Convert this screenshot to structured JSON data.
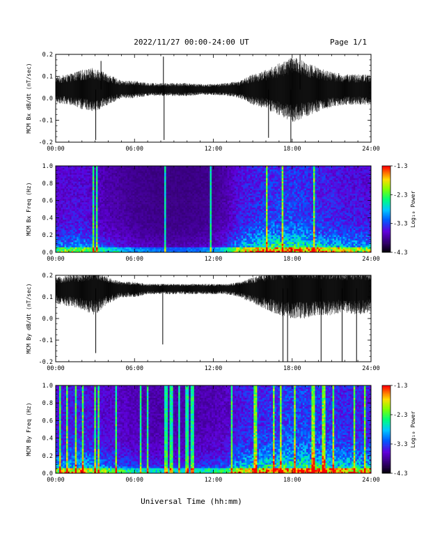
{
  "header": {
    "title": "2022/11/27  00:00-24:00 UT",
    "page": "Page 1/1"
  },
  "footer": {
    "xlabel": "Universal Time (hh:mm)"
  },
  "colors": {
    "trace": "#000000",
    "background": "#ffffff"
  },
  "chart_data": [
    {
      "type": "line",
      "title": "",
      "xlabel": "",
      "ylabel": "MCM Bx dB/dt (nT/sec)",
      "xlim": [
        0,
        24
      ],
      "ylim": [
        -0.2,
        0.2
      ],
      "x_ticks": [
        "00:00",
        "06:00",
        "12:00",
        "18:00",
        "24:00"
      ],
      "y_ticks": [
        "-0.2",
        "-0.1",
        "0.0",
        "0.1",
        "0.2"
      ],
      "x_tick_values": [
        0,
        6,
        12,
        18,
        24
      ],
      "y_tick_values": [
        -0.2,
        -0.1,
        0.0,
        0.1,
        0.2
      ],
      "baseline": 0.04,
      "envelope": {
        "hours": [
          0,
          1,
          2,
          3,
          4,
          5,
          6,
          7,
          8,
          9,
          10,
          11,
          12,
          13,
          14,
          15,
          16,
          17,
          18,
          19,
          20,
          21,
          22,
          23,
          24
        ],
        "amplitude": [
          0.06,
          0.07,
          0.09,
          0.1,
          0.07,
          0.04,
          0.04,
          0.03,
          0.03,
          0.03,
          0.03,
          0.025,
          0.025,
          0.03,
          0.04,
          0.07,
          0.09,
          0.12,
          0.15,
          0.13,
          0.1,
          0.08,
          0.07,
          0.07,
          0.07
        ]
      },
      "spikes": [
        {
          "x": 3.05,
          "y": -0.19
        },
        {
          "x": 3.45,
          "y": 0.17
        },
        {
          "x": 8.2,
          "y": 0.19
        },
        {
          "x": 8.25,
          "y": -0.19
        },
        {
          "x": 16.2,
          "y": -0.18
        },
        {
          "x": 17.9,
          "y": -0.2
        },
        {
          "x": 18.6,
          "y": 0.2
        }
      ]
    },
    {
      "type": "heatmap",
      "title": "",
      "xlabel": "",
      "ylabel": "MCM Bx Freq (Hz)",
      "xlim": [
        0,
        24
      ],
      "ylim": [
        0,
        1.0
      ],
      "x_ticks": [
        "00:00",
        "06:00",
        "12:00",
        "18:00",
        "24:00"
      ],
      "y_ticks": [
        "0.0",
        "0.2",
        "0.4",
        "0.6",
        "0.8",
        "1.0"
      ],
      "x_tick_values": [
        0,
        6,
        12,
        18,
        24
      ],
      "y_tick_values": [
        0,
        0.2,
        0.4,
        0.6,
        0.8,
        1.0
      ],
      "colorbar": {
        "label": "Log₁₀ Power",
        "range": [
          -4.3,
          -1.3
        ],
        "ticks": [
          "-1.3",
          "-2.3",
          "-3.3",
          "-4.3"
        ],
        "tick_values": [
          -1.3,
          -2.3,
          -3.3,
          -4.3
        ]
      },
      "activity": {
        "hours": [
          0,
          2,
          4,
          6,
          8,
          10,
          12,
          13,
          14,
          16,
          18,
          20,
          22,
          24
        ],
        "level": [
          0.45,
          0.5,
          0.3,
          0.2,
          0.15,
          0.15,
          0.2,
          0.3,
          0.55,
          0.7,
          0.75,
          0.65,
          0.55,
          0.5
        ]
      },
      "bright_columns": [
        2.9,
        3.1,
        8.3,
        11.8,
        16.1,
        17.3,
        19.7
      ]
    },
    {
      "type": "line",
      "title": "",
      "xlabel": "",
      "ylabel": "MCM By dB/dt (nT/sec)",
      "xlim": [
        0,
        24
      ],
      "ylim": [
        -0.2,
        0.2
      ],
      "x_ticks": [
        "00:00",
        "06:00",
        "12:00",
        "18:00",
        "24:00"
      ],
      "y_ticks": [
        "-0.2",
        "-0.1",
        "0.0",
        "0.1",
        "0.2"
      ],
      "x_tick_values": [
        0,
        6,
        12,
        18,
        24
      ],
      "y_tick_values": [
        -0.2,
        -0.1,
        0.0,
        0.1,
        0.2
      ],
      "baseline": 0.14,
      "envelope": {
        "hours": [
          0,
          1,
          2,
          3,
          4,
          5,
          6,
          7,
          8,
          9,
          10,
          11,
          12,
          13,
          14,
          15,
          16,
          17,
          18,
          19,
          20,
          21,
          22,
          23,
          24
        ],
        "amplitude": [
          0.05,
          0.06,
          0.07,
          0.09,
          0.05,
          0.03,
          0.03,
          0.02,
          0.02,
          0.02,
          0.02,
          0.02,
          0.02,
          0.02,
          0.03,
          0.05,
          0.07,
          0.09,
          0.1,
          0.1,
          0.09,
          0.09,
          0.08,
          0.09,
          0.08
        ]
      },
      "spikes": [
        {
          "x": 3.05,
          "y": -0.16
        },
        {
          "x": 8.15,
          "y": -0.12
        },
        {
          "x": 17.3,
          "y": -0.2
        },
        {
          "x": 17.65,
          "y": -0.2
        },
        {
          "x": 20.2,
          "y": -0.2
        },
        {
          "x": 21.8,
          "y": -0.2
        },
        {
          "x": 22.9,
          "y": -0.2
        }
      ]
    },
    {
      "type": "heatmap",
      "title": "",
      "xlabel": "",
      "ylabel": "MCM By Freq (Hz)",
      "xlim": [
        0,
        24
      ],
      "ylim": [
        0,
        1.0
      ],
      "x_ticks": [
        "00:00",
        "06:00",
        "12:00",
        "18:00",
        "24:00"
      ],
      "y_ticks": [
        "0.0",
        "0.2",
        "0.4",
        "0.6",
        "0.8",
        "1.0"
      ],
      "x_tick_values": [
        0,
        6,
        12,
        18,
        24
      ],
      "y_tick_values": [
        0,
        0.2,
        0.4,
        0.6,
        0.8,
        1.0
      ],
      "colorbar": {
        "label": "Log₁₀ Power",
        "range": [
          -4.3,
          -1.3
        ],
        "ticks": [
          "-1.3",
          "-2.3",
          "-3.3",
          "-4.3"
        ],
        "tick_values": [
          -1.3,
          -2.3,
          -3.3,
          -4.3
        ]
      },
      "activity": {
        "hours": [
          0,
          2,
          4,
          6,
          8,
          10,
          12,
          13,
          14,
          16,
          18,
          20,
          22,
          24
        ],
        "level": [
          0.55,
          0.6,
          0.45,
          0.35,
          0.3,
          0.3,
          0.35,
          0.4,
          0.6,
          0.7,
          0.8,
          0.75,
          0.65,
          0.6
        ]
      },
      "bright_columns": [
        0.3,
        0.9,
        1.5,
        2.1,
        3.0,
        3.3,
        4.6,
        6.5,
        7.0,
        8.4,
        8.8,
        9.4,
        10.0,
        10.4,
        13.4,
        15.2,
        16.6,
        17.1,
        18.2,
        19.6,
        20.4,
        21.1,
        22.7,
        23.5
      ]
    }
  ]
}
